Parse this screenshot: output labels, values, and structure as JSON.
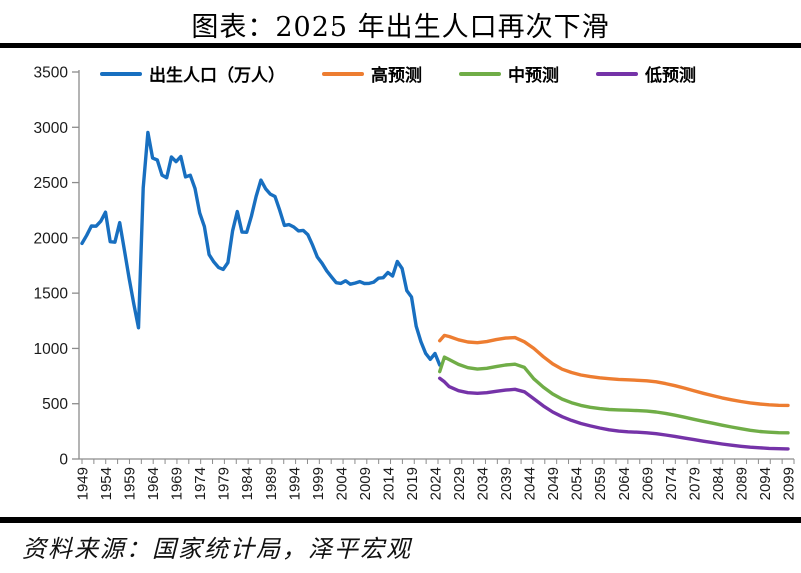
{
  "page": {
    "title": "图表：2025 年出生人口再次下滑",
    "source": "资料来源：国家统计局，泽平宏观"
  },
  "legend": {
    "items": [
      {
        "label": "出生人口（万人）",
        "color": "#186FC0"
      },
      {
        "label": "高预测",
        "color": "#ED7D31"
      },
      {
        "label": "中预测",
        "color": "#70AD47"
      },
      {
        "label": "低预测",
        "color": "#7533A8"
      }
    ]
  },
  "chart_data": {
    "type": "line",
    "title": "图表：2025 年出生人口再次下滑",
    "xlabel": "",
    "ylabel": "",
    "grid": false,
    "legend_position": "top",
    "x_axis": {
      "range": [
        1949,
        2099
      ],
      "tick_labels": [
        "1949",
        "1954",
        "1959",
        "1964",
        "1969",
        "1974",
        "1979",
        "1984",
        "1989",
        "1994",
        "1999",
        "2004",
        "2009",
        "2014",
        "2019",
        "2024",
        "2029",
        "2034",
        "2039",
        "2044",
        "2049",
        "2054",
        "2059",
        "2064",
        "2069",
        "2074",
        "2079",
        "2084",
        "2089",
        "2094",
        "2099"
      ]
    },
    "y_axis": {
      "range": [
        0,
        3500
      ],
      "interval": 500,
      "tick_labels": [
        "0",
        "500",
        "1000",
        "1500",
        "2000",
        "2500",
        "3000",
        "3500"
      ]
    },
    "series": [
      {
        "name": "出生人口（万人）",
        "color": "#186FC0",
        "start_year": 1949,
        "values": [
          1950,
          2023,
          2107,
          2105,
          2151,
          2232,
          1965,
          1961,
          2138,
          1889,
          1635,
          1402,
          1187,
          2451,
          2954,
          2721,
          2704,
          2568,
          2544,
          2731,
          2690,
          2736,
          2551,
          2566,
          2447,
          2226,
          2102,
          1849,
          1783,
          1733,
          1715,
          1776,
          2064,
          2238,
          2052,
          2050,
          2196,
          2374,
          2522,
          2445,
          2396,
          2374,
          2250,
          2113,
          2120,
          2098,
          2063,
          2067,
          2028,
          1934,
          1827,
          1771,
          1702,
          1647,
          1594,
          1588,
          1612,
          1581,
          1591,
          1604,
          1587,
          1588,
          1600,
          1635,
          1640,
          1687,
          1655,
          1786,
          1723,
          1523,
          1465,
          1200,
          1062,
          956,
          902,
          954,
          850
        ]
      },
      {
        "name": "高预测",
        "color": "#ED7D31",
        "points": [
          [
            2025,
            1070
          ],
          [
            2026,
            1118
          ],
          [
            2027,
            1108
          ],
          [
            2029,
            1078
          ],
          [
            2031,
            1058
          ],
          [
            2033,
            1052
          ],
          [
            2035,
            1062
          ],
          [
            2037,
            1080
          ],
          [
            2039,
            1093
          ],
          [
            2041,
            1098
          ],
          [
            2043,
            1060
          ],
          [
            2045,
            1000
          ],
          [
            2047,
            925
          ],
          [
            2049,
            860
          ],
          [
            2051,
            812
          ],
          [
            2053,
            782
          ],
          [
            2055,
            760
          ],
          [
            2057,
            745
          ],
          [
            2059,
            734
          ],
          [
            2061,
            726
          ],
          [
            2063,
            720
          ],
          [
            2065,
            716
          ],
          [
            2067,
            712
          ],
          [
            2069,
            707
          ],
          [
            2071,
            698
          ],
          [
            2073,
            682
          ],
          [
            2075,
            663
          ],
          [
            2077,
            641
          ],
          [
            2079,
            617
          ],
          [
            2081,
            594
          ],
          [
            2083,
            573
          ],
          [
            2085,
            553
          ],
          [
            2087,
            535
          ],
          [
            2089,
            520
          ],
          [
            2091,
            507
          ],
          [
            2093,
            497
          ],
          [
            2095,
            490
          ],
          [
            2097,
            486
          ],
          [
            2099,
            485
          ]
        ]
      },
      {
        "name": "中预测",
        "color": "#70AD47",
        "points": [
          [
            2025,
            790
          ],
          [
            2026,
            922
          ],
          [
            2027,
            900
          ],
          [
            2029,
            856
          ],
          [
            2031,
            826
          ],
          [
            2033,
            813
          ],
          [
            2035,
            820
          ],
          [
            2037,
            836
          ],
          [
            2039,
            850
          ],
          [
            2041,
            857
          ],
          [
            2043,
            828
          ],
          [
            2045,
            725
          ],
          [
            2047,
            650
          ],
          [
            2049,
            588
          ],
          [
            2051,
            542
          ],
          [
            2053,
            509
          ],
          [
            2055,
            485
          ],
          [
            2057,
            468
          ],
          [
            2059,
            456
          ],
          [
            2061,
            448
          ],
          [
            2063,
            444
          ],
          [
            2065,
            441
          ],
          [
            2067,
            438
          ],
          [
            2069,
            433
          ],
          [
            2071,
            425
          ],
          [
            2073,
            412
          ],
          [
            2075,
            396
          ],
          [
            2077,
            378
          ],
          [
            2079,
            359
          ],
          [
            2081,
            341
          ],
          [
            2083,
            324
          ],
          [
            2085,
            306
          ],
          [
            2087,
            289
          ],
          [
            2089,
            274
          ],
          [
            2091,
            260
          ],
          [
            2093,
            249
          ],
          [
            2095,
            242
          ],
          [
            2097,
            238
          ],
          [
            2099,
            237
          ]
        ]
      },
      {
        "name": "低预测",
        "color": "#7533A8",
        "points": [
          [
            2025,
            730
          ],
          [
            2026,
            698
          ],
          [
            2027,
            655
          ],
          [
            2029,
            618
          ],
          [
            2031,
            600
          ],
          [
            2033,
            594
          ],
          [
            2035,
            600
          ],
          [
            2037,
            612
          ],
          [
            2039,
            623
          ],
          [
            2041,
            630
          ],
          [
            2043,
            608
          ],
          [
            2045,
            545
          ],
          [
            2047,
            480
          ],
          [
            2049,
            425
          ],
          [
            2051,
            383
          ],
          [
            2053,
            349
          ],
          [
            2055,
            321
          ],
          [
            2057,
            299
          ],
          [
            2059,
            280
          ],
          [
            2061,
            264
          ],
          [
            2063,
            252
          ],
          [
            2065,
            246
          ],
          [
            2067,
            242
          ],
          [
            2069,
            237
          ],
          [
            2071,
            229
          ],
          [
            2073,
            217
          ],
          [
            2075,
            204
          ],
          [
            2077,
            189
          ],
          [
            2079,
            175
          ],
          [
            2081,
            161
          ],
          [
            2083,
            148
          ],
          [
            2085,
            136
          ],
          [
            2087,
            125
          ],
          [
            2089,
            115
          ],
          [
            2091,
            107
          ],
          [
            2093,
            101
          ],
          [
            2095,
            96
          ],
          [
            2097,
            93
          ],
          [
            2099,
            91
          ]
        ]
      }
    ]
  }
}
